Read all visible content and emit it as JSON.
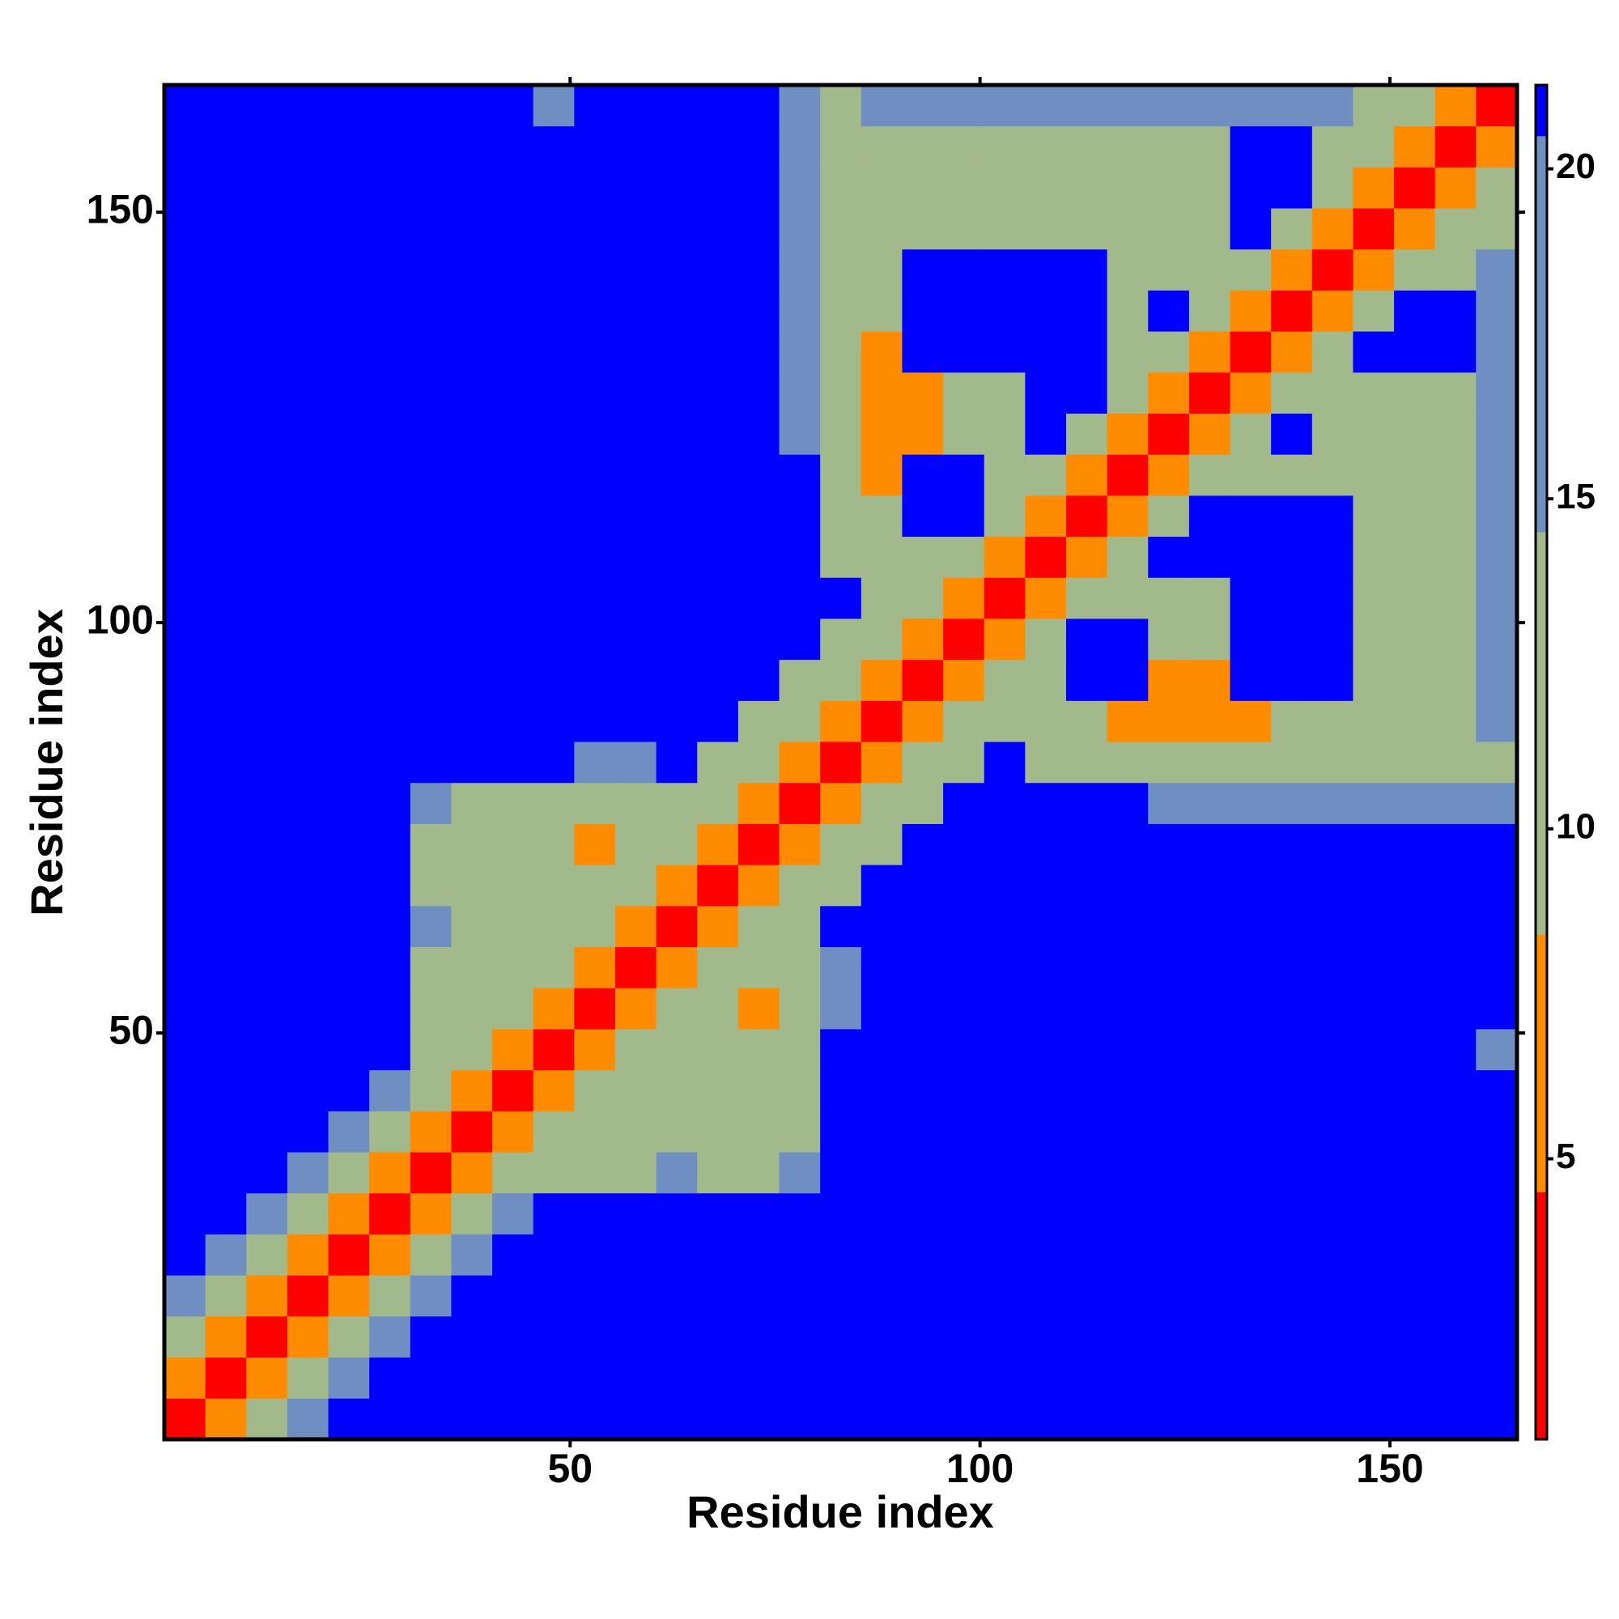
{
  "chart_data": {
    "type": "heatmap",
    "xlabel": "Residue index",
    "ylabel": "Residue index",
    "x": [
      3,
      8,
      13,
      18,
      23,
      28,
      33,
      38,
      43,
      48,
      53,
      58,
      63,
      68,
      73,
      78,
      83,
      88,
      93,
      98,
      103,
      108,
      113,
      118,
      123,
      128,
      133,
      138,
      143,
      148,
      153,
      158,
      163
    ],
    "y": [
      3,
      8,
      13,
      18,
      23,
      28,
      33,
      38,
      43,
      48,
      53,
      58,
      63,
      68,
      73,
      78,
      83,
      88,
      93,
      98,
      103,
      108,
      113,
      118,
      123,
      128,
      133,
      138,
      143,
      148,
      153,
      158,
      163
    ],
    "z": [
      [
        3,
        7,
        11,
        17,
        21,
        21,
        21,
        21,
        21,
        21,
        21,
        21,
        21,
        21,
        21,
        21,
        21,
        21,
        21,
        21,
        21,
        21,
        21,
        21,
        21,
        21,
        21,
        21,
        21,
        21,
        21,
        21,
        21
      ],
      [
        7,
        3,
        7,
        11,
        17,
        21,
        21,
        21,
        21,
        21,
        21,
        21,
        21,
        21,
        21,
        21,
        21,
        21,
        21,
        21,
        21,
        21,
        21,
        21,
        21,
        21,
        21,
        21,
        21,
        21,
        21,
        21,
        21
      ],
      [
        11,
        7,
        3,
        7,
        11,
        17,
        21,
        21,
        21,
        21,
        21,
        21,
        21,
        21,
        21,
        21,
        21,
        21,
        21,
        21,
        21,
        21,
        21,
        21,
        21,
        21,
        21,
        21,
        21,
        21,
        21,
        21,
        21
      ],
      [
        17,
        11,
        7,
        3,
        7,
        11,
        17,
        21,
        21,
        21,
        21,
        21,
        21,
        21,
        21,
        21,
        21,
        21,
        21,
        21,
        21,
        21,
        21,
        21,
        21,
        21,
        21,
        21,
        21,
        21,
        21,
        21,
        21
      ],
      [
        21,
        17,
        11,
        7,
        3,
        7,
        11,
        17,
        21,
        21,
        21,
        21,
        21,
        21,
        21,
        21,
        21,
        21,
        21,
        21,
        21,
        21,
        21,
        21,
        21,
        21,
        21,
        21,
        21,
        21,
        21,
        21,
        21
      ],
      [
        21,
        21,
        17,
        11,
        7,
        3,
        7,
        11,
        17,
        21,
        21,
        21,
        21,
        21,
        21,
        21,
        21,
        21,
        21,
        21,
        21,
        21,
        21,
        21,
        21,
        21,
        21,
        21,
        21,
        21,
        21,
        21,
        21
      ],
      [
        21,
        21,
        21,
        17,
        11,
        7,
        3,
        7,
        11,
        14,
        14,
        14,
        17,
        14,
        14,
        17,
        21,
        21,
        21,
        21,
        21,
        21,
        21,
        21,
        21,
        21,
        21,
        21,
        21,
        21,
        21,
        21,
        21
      ],
      [
        21,
        21,
        21,
        21,
        17,
        11,
        7,
        3,
        7,
        11,
        14,
        14,
        14,
        14,
        14,
        14,
        21,
        21,
        21,
        21,
        21,
        21,
        21,
        21,
        21,
        21,
        21,
        21,
        21,
        21,
        21,
        21,
        21
      ],
      [
        21,
        21,
        21,
        21,
        21,
        17,
        11,
        7,
        3,
        7,
        11,
        14,
        14,
        14,
        14,
        14,
        21,
        21,
        21,
        21,
        21,
        21,
        21,
        21,
        21,
        21,
        21,
        21,
        21,
        21,
        21,
        21,
        21
      ],
      [
        21,
        21,
        21,
        21,
        21,
        21,
        14,
        11,
        7,
        3,
        7,
        11,
        14,
        14,
        14,
        14,
        21,
        21,
        21,
        21,
        21,
        21,
        21,
        21,
        21,
        21,
        21,
        21,
        21,
        21,
        21,
        21,
        15
      ],
      [
        21,
        21,
        21,
        21,
        21,
        21,
        14,
        14,
        11,
        7,
        3,
        7,
        11,
        14,
        8,
        14,
        17,
        21,
        21,
        21,
        21,
        21,
        21,
        21,
        21,
        21,
        21,
        21,
        21,
        21,
        21,
        21,
        21
      ],
      [
        21,
        21,
        21,
        21,
        21,
        21,
        14,
        14,
        14,
        11,
        7,
        3,
        7,
        11,
        14,
        14,
        17,
        21,
        21,
        21,
        21,
        21,
        21,
        21,
        21,
        21,
        21,
        21,
        21,
        21,
        21,
        21,
        21
      ],
      [
        21,
        21,
        21,
        21,
        21,
        21,
        17,
        14,
        14,
        14,
        11,
        7,
        3,
        7,
        11,
        14,
        21,
        21,
        21,
        21,
        21,
        21,
        21,
        21,
        21,
        21,
        21,
        21,
        21,
        21,
        21,
        21,
        21
      ],
      [
        21,
        21,
        21,
        21,
        21,
        21,
        14,
        14,
        14,
        14,
        14,
        11,
        7,
        3,
        7,
        11,
        14,
        21,
        21,
        21,
        21,
        21,
        21,
        21,
        21,
        21,
        21,
        21,
        21,
        21,
        21,
        21,
        21
      ],
      [
        21,
        21,
        21,
        21,
        21,
        21,
        14,
        14,
        14,
        14,
        8,
        14,
        11,
        7,
        3,
        7,
        11,
        14,
        21,
        21,
        21,
        21,
        21,
        21,
        21,
        21,
        21,
        21,
        21,
        21,
        21,
        21,
        21
      ],
      [
        21,
        21,
        21,
        21,
        21,
        21,
        17,
        14,
        14,
        14,
        14,
        14,
        14,
        11,
        7,
        3,
        7,
        11,
        14,
        21,
        21,
        21,
        21,
        21,
        17,
        17,
        17,
        17,
        17,
        17,
        17,
        17,
        17
      ],
      [
        21,
        21,
        21,
        21,
        21,
        21,
        21,
        21,
        21,
        21,
        17,
        17,
        21,
        14,
        11,
        7,
        3,
        7,
        11,
        12,
        21,
        14,
        14,
        14,
        14,
        14,
        14,
        14,
        14,
        14,
        14,
        14,
        14
      ],
      [
        21,
        21,
        21,
        21,
        21,
        21,
        21,
        21,
        21,
        21,
        21,
        21,
        21,
        21,
        14,
        11,
        7,
        3,
        7,
        11,
        12,
        13,
        13,
        8,
        8,
        8,
        8,
        13,
        13,
        13,
        13,
        14,
        15
      ],
      [
        21,
        21,
        21,
        21,
        21,
        21,
        21,
        21,
        21,
        21,
        21,
        21,
        21,
        21,
        21,
        14,
        11,
        7,
        3,
        7,
        11,
        12,
        21,
        21,
        8,
        8,
        21,
        21,
        21,
        13,
        13,
        14,
        15
      ],
      [
        21,
        21,
        21,
        21,
        21,
        21,
        21,
        21,
        21,
        21,
        21,
        21,
        21,
        21,
        21,
        21,
        12,
        11,
        7,
        3,
        7,
        11,
        21,
        21,
        13,
        13,
        21,
        21,
        21,
        13,
        13,
        14,
        15
      ],
      [
        21,
        21,
        21,
        21,
        21,
        21,
        21,
        21,
        21,
        21,
        21,
        21,
        21,
        21,
        21,
        21,
        21,
        12,
        11,
        7,
        3,
        7,
        11,
        12,
        13,
        13,
        21,
        21,
        21,
        13,
        13,
        14,
        15
      ],
      [
        21,
        21,
        21,
        21,
        21,
        21,
        21,
        21,
        21,
        21,
        21,
        21,
        21,
        21,
        21,
        21,
        14,
        13,
        12,
        11,
        7,
        3,
        7,
        11,
        21,
        21,
        21,
        21,
        21,
        13,
        13,
        14,
        15
      ],
      [
        21,
        21,
        21,
        21,
        21,
        21,
        21,
        21,
        21,
        21,
        21,
        21,
        21,
        21,
        21,
        21,
        14,
        13,
        21,
        21,
        11,
        7,
        3,
        7,
        11,
        21,
        21,
        21,
        21,
        13,
        13,
        14,
        15
      ],
      [
        21,
        21,
        21,
        21,
        21,
        21,
        21,
        21,
        21,
        21,
        21,
        21,
        21,
        21,
        21,
        21,
        14,
        8,
        21,
        21,
        12,
        11,
        7,
        3,
        7,
        11,
        12,
        13,
        13,
        13,
        13,
        14,
        15
      ],
      [
        21,
        21,
        21,
        21,
        21,
        21,
        21,
        21,
        21,
        21,
        21,
        21,
        21,
        21,
        21,
        17,
        14,
        8,
        8,
        13,
        13,
        21,
        11,
        7,
        3,
        7,
        11,
        21,
        13,
        13,
        13,
        14,
        15
      ],
      [
        21,
        21,
        21,
        21,
        21,
        21,
        21,
        21,
        21,
        21,
        21,
        21,
        21,
        21,
        21,
        17,
        14,
        8,
        8,
        13,
        13,
        21,
        21,
        11,
        7,
        3,
        7,
        11,
        12,
        13,
        13,
        14,
        15
      ],
      [
        21,
        21,
        21,
        21,
        21,
        21,
        21,
        21,
        21,
        21,
        21,
        21,
        21,
        21,
        21,
        17,
        14,
        8,
        21,
        21,
        21,
        21,
        21,
        12,
        11,
        7,
        3,
        7,
        11,
        21,
        21,
        21,
        15
      ],
      [
        21,
        21,
        21,
        21,
        21,
        21,
        21,
        21,
        21,
        21,
        21,
        21,
        21,
        21,
        21,
        17,
        14,
        13,
        21,
        21,
        21,
        21,
        21,
        13,
        21,
        11,
        7,
        3,
        7,
        11,
        21,
        21,
        15
      ],
      [
        21,
        21,
        21,
        21,
        21,
        21,
        21,
        21,
        21,
        21,
        21,
        21,
        21,
        21,
        21,
        17,
        14,
        13,
        21,
        21,
        21,
        21,
        21,
        13,
        13,
        12,
        11,
        7,
        3,
        7,
        11,
        12,
        15
      ],
      [
        21,
        21,
        21,
        21,
        21,
        21,
        21,
        21,
        21,
        21,
        21,
        21,
        21,
        21,
        21,
        17,
        14,
        13,
        13,
        13,
        13,
        13,
        13,
        13,
        13,
        13,
        21,
        11,
        7,
        3,
        7,
        11,
        12
      ],
      [
        21,
        21,
        21,
        21,
        21,
        21,
        21,
        21,
        21,
        21,
        21,
        21,
        21,
        21,
        21,
        17,
        14,
        13,
        13,
        13,
        13,
        13,
        13,
        13,
        13,
        13,
        21,
        21,
        11,
        7,
        3,
        7,
        11
      ],
      [
        21,
        21,
        21,
        21,
        21,
        21,
        21,
        21,
        21,
        21,
        21,
        21,
        21,
        21,
        21,
        17,
        14,
        14,
        14,
        14,
        14,
        14,
        14,
        14,
        14,
        14,
        21,
        21,
        12,
        11,
        7,
        3,
        7
      ],
      [
        21,
        21,
        21,
        21,
        21,
        21,
        21,
        21,
        21,
        15,
        21,
        21,
        21,
        21,
        21,
        17,
        14,
        15,
        15,
        15,
        15,
        15,
        15,
        15,
        15,
        15,
        15,
        15,
        15,
        12,
        11,
        7,
        3
      ]
    ],
    "xlim": [
      0.5,
      165.5
    ],
    "ylim": [
      0.5,
      165.5
    ],
    "xticks": [
      50,
      100,
      150
    ],
    "yticks": [
      50,
      100,
      150
    ],
    "colorbar": {
      "lim": [
        0.75,
        21.27
      ],
      "ticks": [
        5,
        10,
        15,
        20
      ],
      "breaks": [
        4.5,
        8.4,
        14.5,
        20.5
      ],
      "colors": [
        "#ff0000",
        "#ff8c00",
        "#a2b98c",
        "#6f8fc2",
        "#0000ff"
      ]
    }
  }
}
